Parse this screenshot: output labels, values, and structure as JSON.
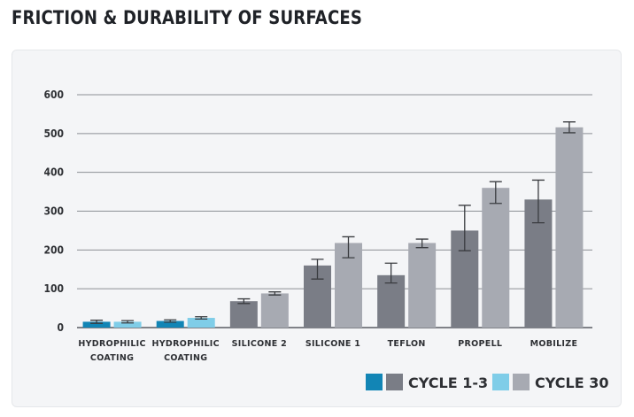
{
  "page": {
    "title": "FRICTION & DURABILITY OF SURFACES"
  },
  "chart_data": {
    "type": "bar",
    "title": "FRICTION & DURABILITY OF SURFACES",
    "xlabel": "",
    "ylabel": "",
    "ylim": [
      0,
      600
    ],
    "yticks": [
      0,
      100,
      200,
      300,
      400,
      500,
      600
    ],
    "grid": true,
    "legend_placement": "bottom-right",
    "categories": [
      [
        "HYDROPHILIC",
        "COATING"
      ],
      [
        "HYDROPHILIC",
        "COATING"
      ],
      [
        "SILICONE 2"
      ],
      [
        "SILICONE 1"
      ],
      [
        "TEFLON"
      ],
      [
        "PROPELL"
      ],
      [
        "MOBILIZE"
      ]
    ],
    "series": [
      {
        "name": "CYCLE 1-3",
        "values": [
          15,
          17,
          68,
          160,
          135,
          250,
          330
        ],
        "error_low": [
          11,
          14,
          62,
          125,
          115,
          198,
          270
        ],
        "error_high": [
          19,
          20,
          74,
          176,
          166,
          315,
          380
        ],
        "colors": [
          "#1285b5",
          "#1285b5",
          "#7a7d86",
          "#7a7d86",
          "#7a7d86",
          "#7a7d86",
          "#7a7d86"
        ]
      },
      {
        "name": "CYCLE 30",
        "values": [
          15,
          25,
          88,
          218,
          218,
          360,
          516
        ],
        "error_low": [
          12,
          22,
          84,
          180,
          206,
          320,
          502
        ],
        "error_high": [
          18,
          28,
          92,
          234,
          228,
          376,
          530
        ],
        "colors": [
          "#7fcde8",
          "#7fcde8",
          "#a7aab2",
          "#a7aab2",
          "#a7aab2",
          "#a7aab2",
          "#a7aab2"
        ]
      }
    ],
    "legend": [
      {
        "name": "",
        "color": "#1285b5"
      },
      {
        "name": "CYCLE 1-3",
        "color": "#7a7d86"
      },
      {
        "name": "",
        "color": "#7fcde8"
      },
      {
        "name": "CYCLE 30",
        "color": "#a7aab2"
      }
    ]
  }
}
